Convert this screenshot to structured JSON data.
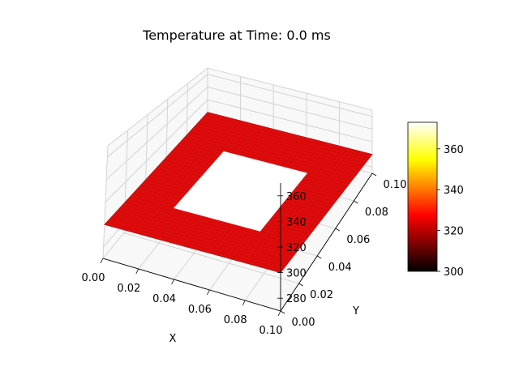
{
  "chart_data": {
    "type": "surface",
    "title": "Temperature at Time: 0.0 ms",
    "xlabel": "X",
    "ylabel": "Y",
    "zlabel": "",
    "xlim": [
      0.0,
      0.1
    ],
    "ylim": [
      0.0,
      0.1
    ],
    "zlim": [
      270,
      370
    ],
    "x_ticks": [
      "0.00",
      "0.02",
      "0.04",
      "0.06",
      "0.08",
      "0.10"
    ],
    "y_ticks": [
      "0.00",
      "0.02",
      "0.04",
      "0.06",
      "0.08",
      "0.10"
    ],
    "z_ticks": [
      "280",
      "300",
      "320",
      "340",
      "360"
    ],
    "plate_temperature": 300,
    "hot_region": {
      "x": [
        0.025,
        0.075
      ],
      "y": [
        0.025,
        0.075
      ],
      "temperature": 373
    },
    "colormap": "hot",
    "colorbar": {
      "range": [
        300,
        373
      ],
      "ticks": [
        "300",
        "320",
        "340",
        "360"
      ]
    },
    "surface_color": "#e00c0c",
    "grid": true
  }
}
